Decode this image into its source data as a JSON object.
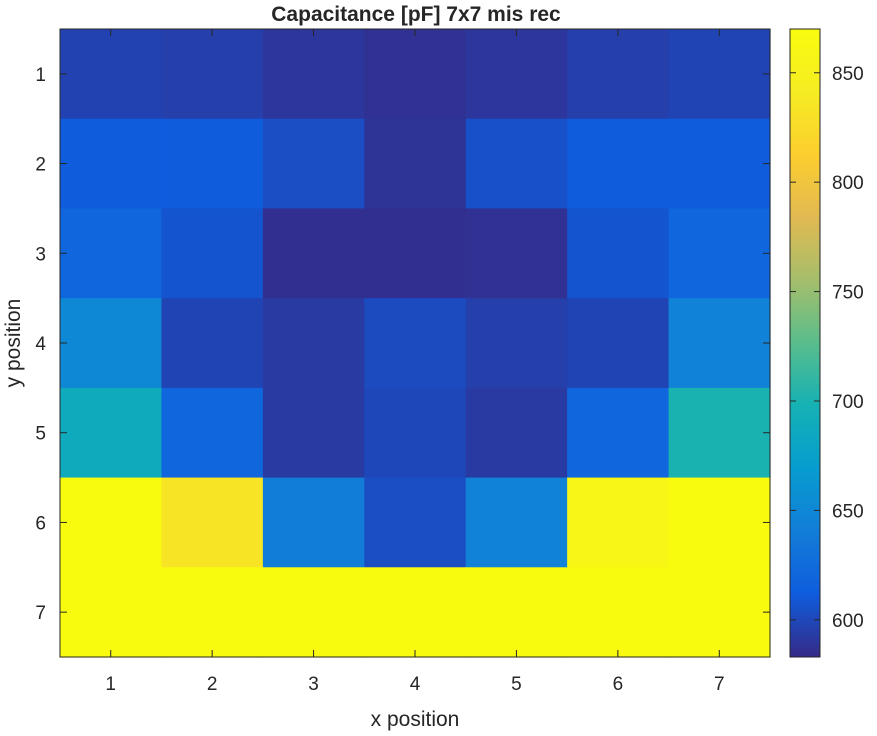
{
  "chart_data": {
    "type": "heatmap",
    "title": "Capacitance [pF] 7x7 mis rec",
    "xlabel": "x position",
    "ylabel": "y position",
    "x_categories": [
      "1",
      "2",
      "3",
      "4",
      "5",
      "6",
      "7"
    ],
    "y_categories": [
      "1",
      "2",
      "3",
      "4",
      "5",
      "6",
      "7"
    ],
    "y_direction": "top-to-bottom",
    "values": [
      [
        597,
        595,
        590,
        587,
        590,
        595,
        598
      ],
      [
        612,
        612,
        603,
        588,
        605,
        612,
        612
      ],
      [
        620,
        607,
        586,
        586,
        587,
        607,
        620
      ],
      [
        650,
        598,
        592,
        602,
        595,
        598,
        645
      ],
      [
        688,
        620,
        592,
        600,
        592,
        620,
        700
      ],
      [
        870,
        835,
        640,
        603,
        645,
        860,
        870
      ],
      [
        870,
        870,
        870,
        870,
        870,
        870,
        870
      ]
    ],
    "colorbar": {
      "min": 583,
      "max": 870,
      "ticks": [
        600,
        650,
        700,
        750,
        800,
        850
      ],
      "tick_labels": [
        "600",
        "650",
        "700",
        "750",
        "800",
        "850"
      ],
      "colormap": "parula"
    }
  }
}
